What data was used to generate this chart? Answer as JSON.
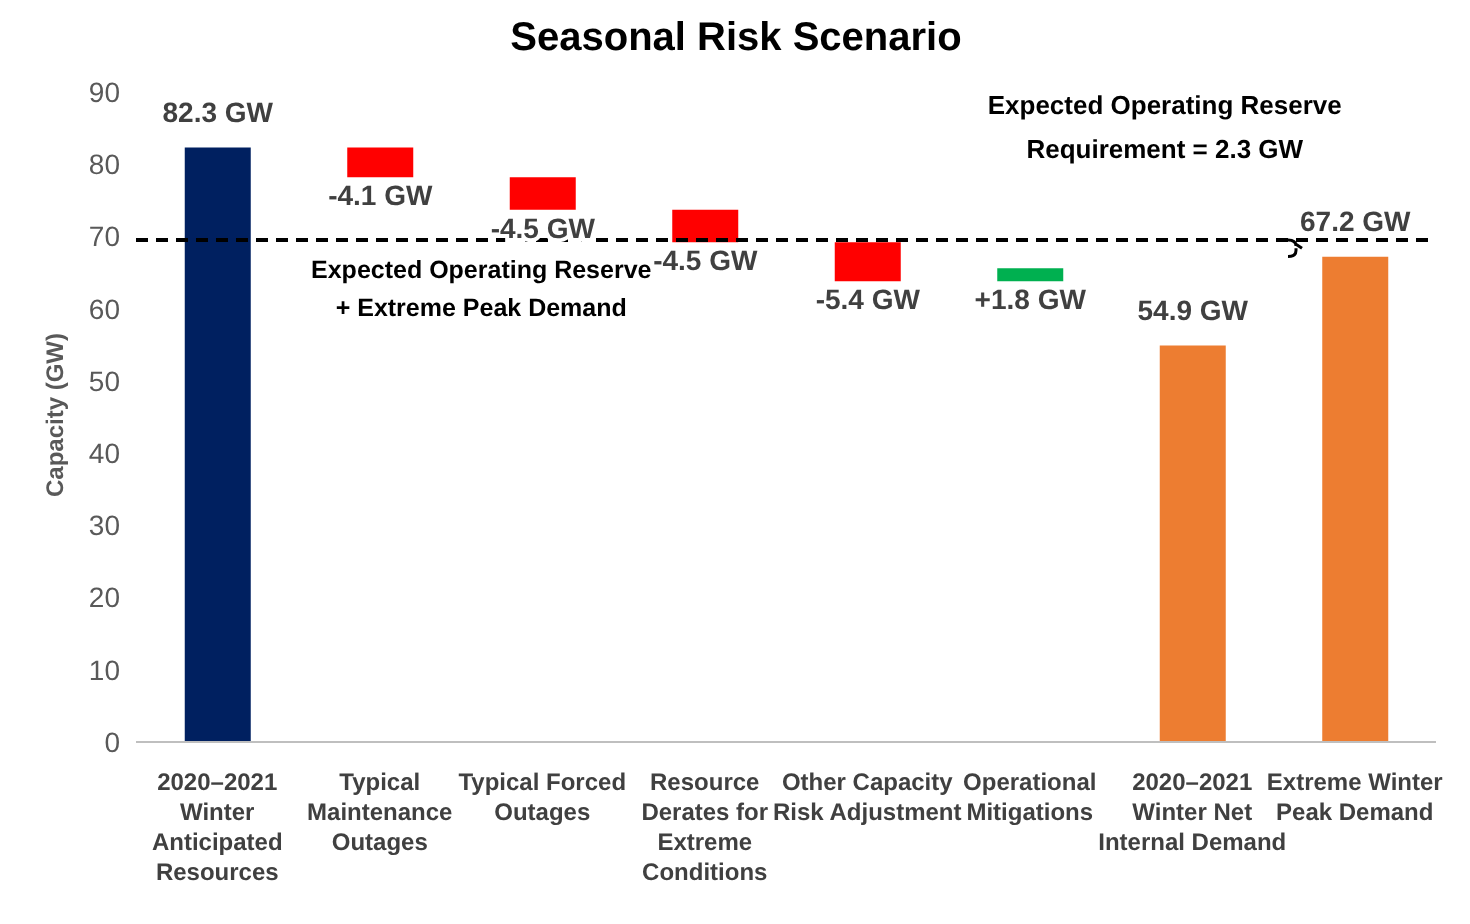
{
  "chart_data": {
    "type": "bar",
    "title": "Seasonal Risk Scenario",
    "ylabel": "Capacity (GW)",
    "categories": [
      "2020–2021 Winter Anticipated Resources",
      "Typical Maintenance Outages",
      "Typical Forced Outages",
      "Resource Derates for Extreme Conditions",
      "Other Capacity Risk Adjustment",
      "Operational Mitigations",
      "2020–2021 Winter Net Internal Demand",
      "Extreme Winter Peak Demand"
    ],
    "values": [
      82.3,
      -4.1,
      -4.5,
      -4.5,
      -5.4,
      1.8,
      54.9,
      67.2
    ],
    "base": [
      0,
      82.3,
      78.2,
      73.7,
      69.2,
      63.8,
      0,
      0
    ],
    "colors": [
      "#002060",
      "#ff0000",
      "#ff0000",
      "#ff0000",
      "#ff0000",
      "#00b050",
      "#ed7d31",
      "#ed7d31"
    ],
    "value_labels": [
      "82.3 GW",
      "-4.1 GW",
      "-4.5 GW",
      "-4.5 GW",
      "-5.4 GW",
      "+1.8 GW",
      "54.9 GW",
      "67.2 GW"
    ],
    "ylim": [
      0,
      90
    ],
    "yticks": [
      0,
      10,
      20,
      30,
      40,
      50,
      60,
      70,
      80,
      90
    ],
    "ref_lines": [
      {
        "axis": "y",
        "value": 69.5,
        "label": "Expected Operating Reserve + Extreme Peak Demand",
        "color": "#000000",
        "line_style": "dashed"
      }
    ],
    "annotations": [
      "Expected Operating Reserve Requirement = 2.3 GW"
    ],
    "grid": false,
    "legend": false
  }
}
